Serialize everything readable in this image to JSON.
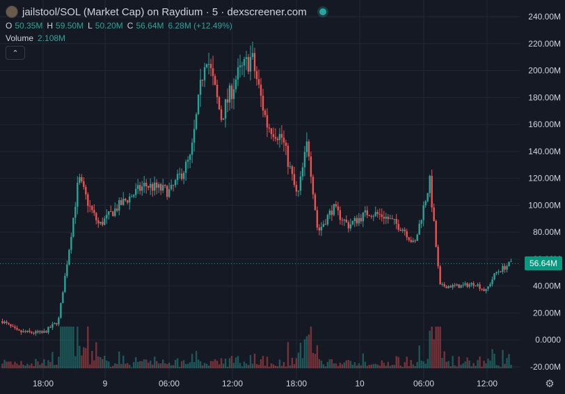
{
  "header": {
    "title": "jailstool/SOL (Market Cap) on Raydium · 5 · dexscreener.com",
    "open_label": "O",
    "open": "50.35M",
    "high_label": "H",
    "high": "59.50M",
    "low_label": "L",
    "low": "50.20M",
    "close_label": "C",
    "close": "56.64M",
    "change": "6.28M (+12.49%)",
    "volume_label": "Volume",
    "volume": "2.108M",
    "collapse_icon": "chevron-up-icon"
  },
  "last_price_label": "56.64M",
  "colors": {
    "up": "#26a69a",
    "down": "#ef5350",
    "badge": "#089981",
    "background": "#151924",
    "grid": "#232733"
  },
  "chart_data": {
    "type": "candlestick",
    "y_ticks": [
      "240.00M",
      "220.00M",
      "200.00M",
      "180.00M",
      "160.00M",
      "140.00M",
      "120.00M",
      "100.00M",
      "80.00M",
      "60.00M",
      "40.00M",
      "20.00M",
      "0.0000",
      "-20.00M"
    ],
    "y_values": [
      240,
      220,
      200,
      180,
      160,
      140,
      120,
      100,
      80,
      60,
      40,
      20,
      0,
      -20
    ],
    "x_ticks": [
      "18:00",
      "9",
      "06:00",
      "12:00",
      "18:00",
      "10",
      "06:00",
      "12:00"
    ],
    "ylim": [
      -20,
      240
    ],
    "unit": "M",
    "last_price": 56.64,
    "series": [
      {
        "name": "market_cap",
        "trend": [
          [
            0,
            14
          ],
          [
            3,
            6
          ],
          [
            8,
            5
          ],
          [
            11,
            14
          ],
          [
            13,
            65
          ],
          [
            15,
            120
          ],
          [
            17,
            100
          ],
          [
            19,
            85
          ],
          [
            23,
            100
          ],
          [
            28,
            115
          ],
          [
            33,
            110
          ],
          [
            37,
            135
          ],
          [
            40,
            215
          ],
          [
            43,
            165
          ],
          [
            46,
            195
          ],
          [
            49,
            210
          ],
          [
            52,
            160
          ],
          [
            55,
            150
          ],
          [
            58,
            105
          ],
          [
            60,
            148
          ],
          [
            62,
            80
          ],
          [
            65,
            98
          ],
          [
            68,
            85
          ],
          [
            72,
            95
          ],
          [
            75,
            92
          ],
          [
            79,
            82
          ],
          [
            81,
            70
          ],
          [
            84,
            118
          ],
          [
            86,
            40
          ],
          [
            90,
            40
          ],
          [
            93,
            42
          ],
          [
            95,
            36
          ],
          [
            97,
            50
          ],
          [
            100,
            57
          ]
        ]
      }
    ]
  }
}
